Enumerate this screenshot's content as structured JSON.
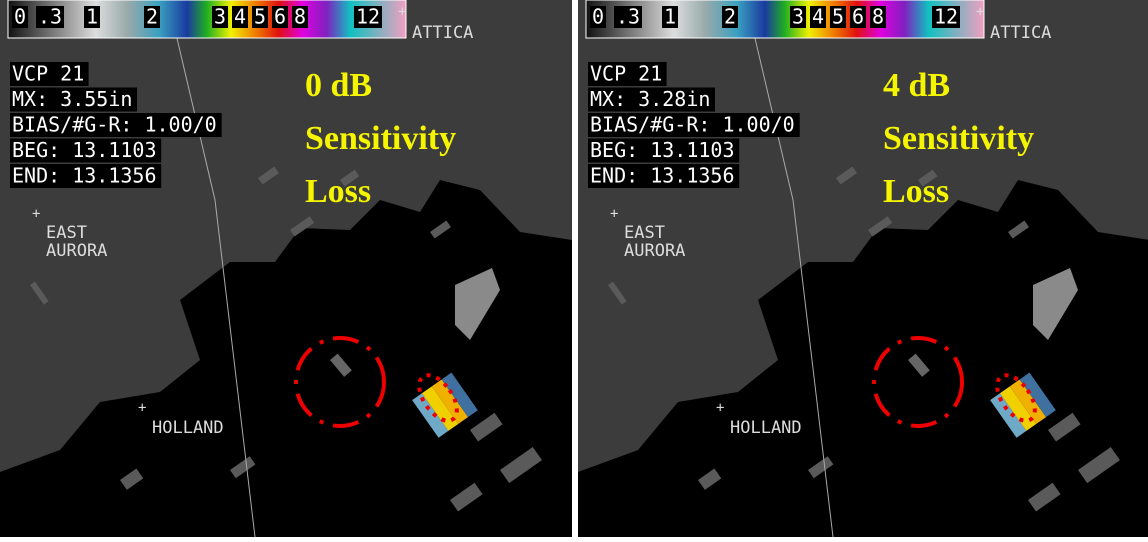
{
  "legend_labels": [
    "0",
    ".3",
    "1",
    "2",
    "3",
    "4",
    "5",
    "6",
    "8",
    "12"
  ],
  "places": {
    "attica": "ATTICA",
    "east": "EAST",
    "aurora": "AURORA",
    "holland": "HOLLAND"
  },
  "panels": [
    {
      "info": [
        "VCP 21",
        "MX: 3.55in",
        "BIAS/#G-R: 1.00/0",
        "BEG: 13.1103",
        "END: 13.1356"
      ],
      "annotation": [
        "0 dB",
        "Sensitivity",
        "Loss"
      ]
    },
    {
      "info": [
        "VCP 21",
        "MX: 3.28in",
        "BIAS/#G-R: 1.00/0",
        "BEG: 13.1103",
        "END: 13.1356"
      ],
      "annotation": [
        "4 dB",
        "Sensitivity",
        "Loss"
      ]
    }
  ]
}
